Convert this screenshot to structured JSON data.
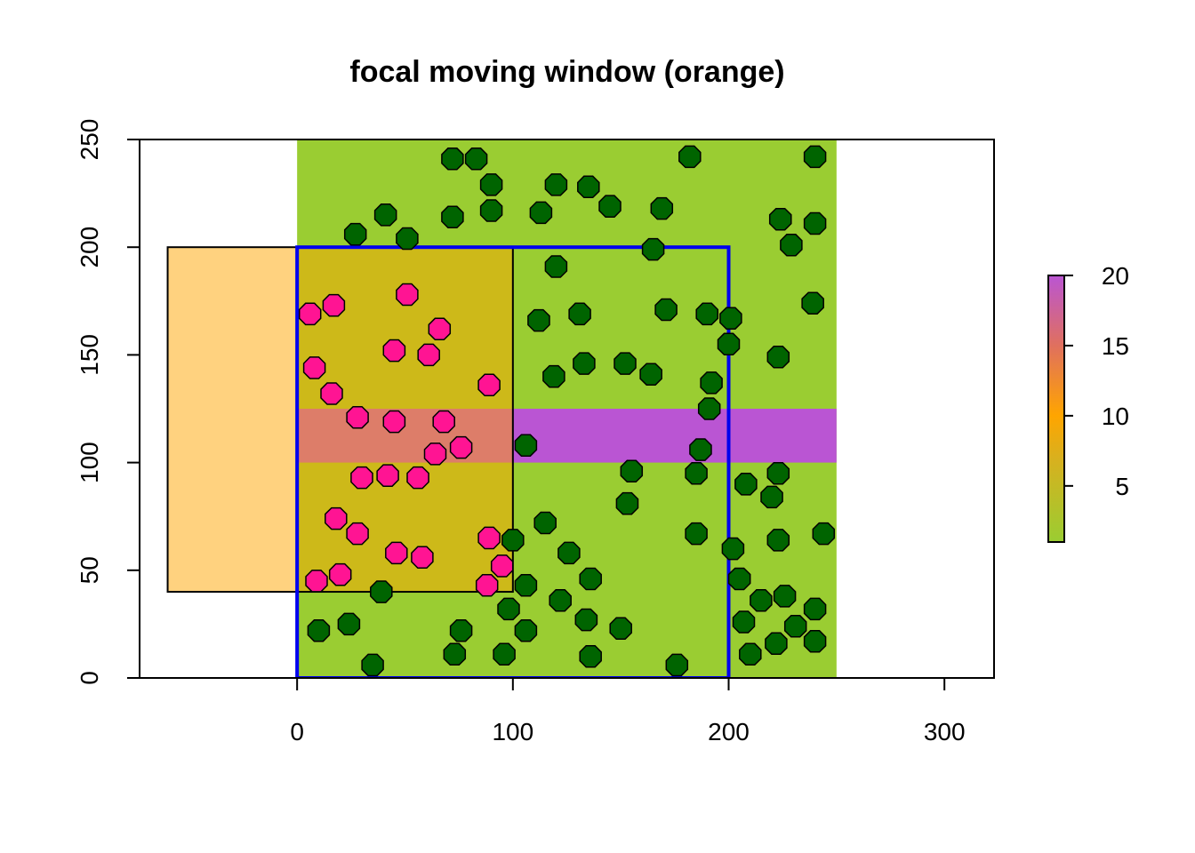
{
  "chart_data": {
    "type": "scatter",
    "title": "focal moving window (orange)",
    "xlabel": "",
    "ylabel": "",
    "xlim": [
      -73,
      323
    ],
    "ylim": [
      0,
      250
    ],
    "x_ticks": [
      0,
      100,
      200,
      300
    ],
    "y_ticks": [
      0,
      50,
      100,
      150,
      200,
      250
    ],
    "colors": {
      "raster_low": "#9ACD32",
      "raster_band": "#BA55D3",
      "focal_window": "#FFA500",
      "focal_window_alpha": 0.5,
      "study_area_border": "#0000EE",
      "point_outside": "#006400",
      "point_inside": "#FF1493"
    },
    "raster": {
      "extent": [
        0,
        250,
        0,
        250
      ],
      "background_value": 1,
      "band": {
        "x": [
          0,
          250
        ],
        "y": [
          100,
          125
        ],
        "value": 20
      }
    },
    "focal_window": {
      "x": [
        -60,
        100
      ],
      "y": [
        40,
        200
      ]
    },
    "study_area": {
      "x": [
        0,
        200
      ],
      "y": [
        0,
        200
      ]
    },
    "legend": {
      "placement": "right",
      "ticks": [
        "5",
        "10",
        "15",
        "20"
      ],
      "tick_values": [
        5,
        10,
        15,
        20
      ],
      "range": [
        1,
        20
      ],
      "stops": [
        {
          "value": 1,
          "color": "#9ACD32"
        },
        {
          "value": 7,
          "color": "#D9B01E"
        },
        {
          "value": 10,
          "color": "#FFA500"
        },
        {
          "value": 15,
          "color": "#E0705E"
        },
        {
          "value": 20,
          "color": "#BA55D3"
        }
      ]
    },
    "series": [
      {
        "color": "#006400",
        "points": [
          [
            72,
            241
          ],
          [
            83,
            241
          ],
          [
            90,
            229
          ],
          [
            120,
            229
          ],
          [
            135,
            228
          ],
          [
            182,
            242
          ],
          [
            240,
            242
          ],
          [
            90,
            217
          ],
          [
            41,
            215
          ],
          [
            72,
            214
          ],
          [
            145,
            219
          ],
          [
            113,
            216
          ],
          [
            169,
            218
          ],
          [
            224,
            213
          ],
          [
            240,
            211
          ],
          [
            27,
            206
          ],
          [
            51,
            204
          ],
          [
            165,
            199
          ],
          [
            229,
            201
          ],
          [
            120,
            191
          ],
          [
            131,
            169
          ],
          [
            112,
            166
          ],
          [
            171,
            171
          ],
          [
            190,
            169
          ],
          [
            201,
            167
          ],
          [
            239,
            174
          ],
          [
            200,
            155
          ],
          [
            152,
            146
          ],
          [
            133,
            146
          ],
          [
            164,
            141
          ],
          [
            119,
            140
          ],
          [
            223,
            149
          ],
          [
            192,
            137
          ],
          [
            191,
            125
          ],
          [
            106,
            108
          ],
          [
            187,
            106
          ],
          [
            155,
            96
          ],
          [
            185,
            95
          ],
          [
            208,
            90
          ],
          [
            220,
            84
          ],
          [
            223,
            95
          ],
          [
            153,
            81
          ],
          [
            115,
            72
          ],
          [
            185,
            67
          ],
          [
            244,
            67
          ],
          [
            223,
            64
          ],
          [
            202,
            60
          ],
          [
            126,
            58
          ],
          [
            136,
            46
          ],
          [
            205,
            46
          ],
          [
            39,
            40
          ],
          [
            106,
            43
          ],
          [
            100,
            64
          ],
          [
            122,
            36
          ],
          [
            215,
            36
          ],
          [
            226,
            38
          ],
          [
            98,
            32
          ],
          [
            134,
            27
          ],
          [
            207,
            26
          ],
          [
            231,
            24
          ],
          [
            240,
            32
          ],
          [
            10,
            22
          ],
          [
            24,
            25
          ],
          [
            76,
            22
          ],
          [
            106,
            22
          ],
          [
            150,
            23
          ],
          [
            222,
            16
          ],
          [
            240,
            17
          ],
          [
            73,
            11
          ],
          [
            96,
            11
          ],
          [
            136,
            10
          ],
          [
            210,
            11
          ],
          [
            35,
            6
          ],
          [
            176,
            6
          ]
        ]
      },
      {
        "color": "#FF1493",
        "points": [
          [
            51,
            178
          ],
          [
            6,
            169
          ],
          [
            17,
            173
          ],
          [
            66,
            162
          ],
          [
            45,
            152
          ],
          [
            61,
            150
          ],
          [
            8,
            144
          ],
          [
            16,
            132
          ],
          [
            89,
            136
          ],
          [
            28,
            121
          ],
          [
            45,
            119
          ],
          [
            68,
            119
          ],
          [
            76,
            107
          ],
          [
            64,
            104
          ],
          [
            30,
            93
          ],
          [
            42,
            94
          ],
          [
            56,
            93
          ],
          [
            18,
            74
          ],
          [
            28,
            67
          ],
          [
            89,
            65
          ],
          [
            46,
            58
          ],
          [
            58,
            56
          ],
          [
            95,
            52
          ],
          [
            20,
            48
          ],
          [
            9,
            45
          ],
          [
            88,
            43
          ]
        ]
      }
    ]
  }
}
